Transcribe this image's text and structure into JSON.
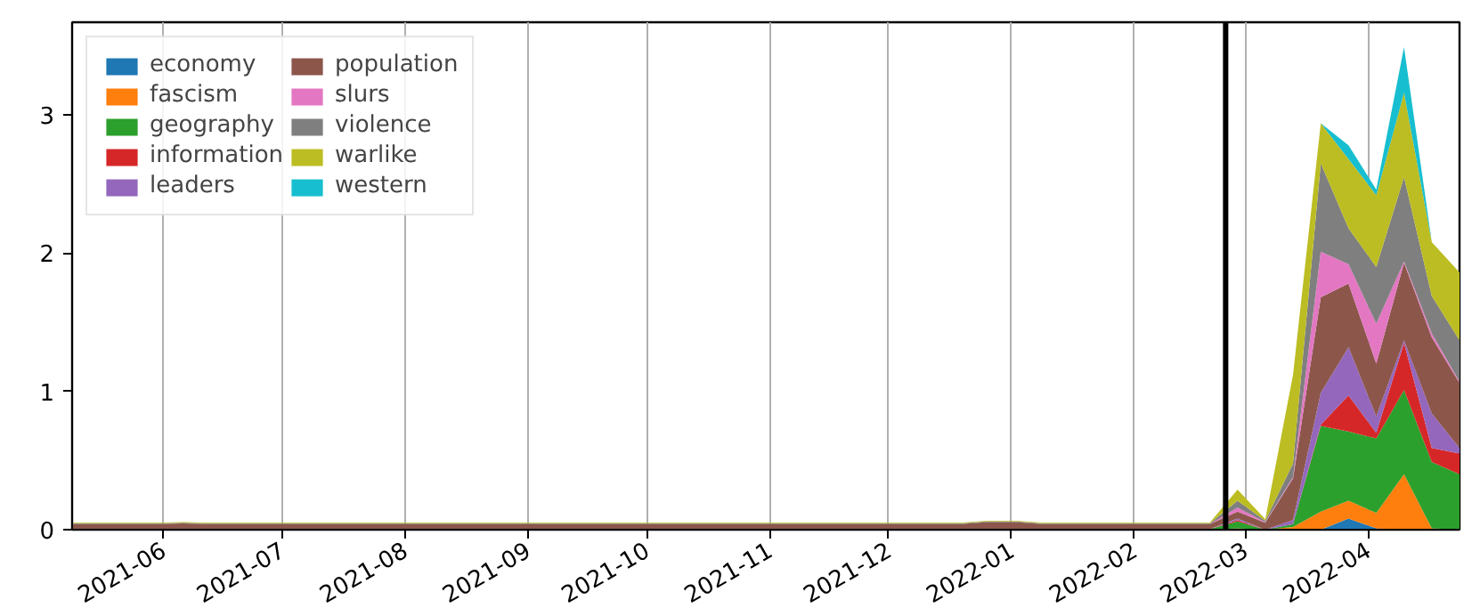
{
  "chart_data": {
    "type": "area",
    "stacked": true,
    "x": [
      "2021-05-09",
      "2021-05-16",
      "2021-05-23",
      "2021-05-30",
      "2021-06-06",
      "2021-06-13",
      "2021-06-20",
      "2021-06-27",
      "2021-07-04",
      "2021-07-11",
      "2021-07-18",
      "2021-07-25",
      "2021-08-01",
      "2021-08-08",
      "2021-08-15",
      "2021-08-22",
      "2021-08-29",
      "2021-09-05",
      "2021-09-12",
      "2021-09-19",
      "2021-09-26",
      "2021-10-03",
      "2021-10-10",
      "2021-10-17",
      "2021-10-24",
      "2021-10-31",
      "2021-11-07",
      "2021-11-14",
      "2021-11-21",
      "2021-11-28",
      "2021-12-05",
      "2021-12-12",
      "2021-12-19",
      "2021-12-26",
      "2022-01-02",
      "2022-01-09",
      "2022-01-16",
      "2022-01-23",
      "2022-01-30",
      "2022-02-06",
      "2022-02-13",
      "2022-02-20",
      "2022-02-27",
      "2022-03-06",
      "2022-03-13",
      "2022-03-20",
      "2022-03-27",
      "2022-04-03",
      "2022-04-10",
      "2022-04-17",
      "2022-04-24"
    ],
    "series": [
      {
        "name": "economy",
        "color": "#1f77b4",
        "values": [
          0,
          0,
          0,
          0,
          0,
          0,
          0,
          0,
          0,
          0,
          0,
          0,
          0,
          0,
          0,
          0,
          0,
          0,
          0,
          0,
          0,
          0,
          0,
          0,
          0,
          0,
          0,
          0,
          0,
          0,
          0,
          0,
          0,
          0,
          0,
          0,
          0,
          0,
          0,
          0,
          0,
          0,
          0,
          0,
          0,
          0,
          0.08,
          0.01,
          0,
          0,
          0
        ]
      },
      {
        "name": "fascism",
        "color": "#ff7f0e",
        "values": [
          0,
          0,
          0,
          0,
          0,
          0,
          0,
          0,
          0,
          0,
          0,
          0,
          0,
          0,
          0,
          0,
          0,
          0,
          0,
          0,
          0,
          0,
          0,
          0,
          0,
          0,
          0,
          0,
          0,
          0,
          0,
          0,
          0,
          0,
          0,
          0,
          0,
          0,
          0,
          0,
          0,
          0,
          0.01,
          0,
          0.02,
          0.13,
          0.13,
          0.11,
          0.4,
          0.01,
          0
        ]
      },
      {
        "name": "geography",
        "color": "#2ca02c",
        "values": [
          0.005,
          0.005,
          0.005,
          0.005,
          0.005,
          0.005,
          0.005,
          0.005,
          0.005,
          0.005,
          0.005,
          0.005,
          0.005,
          0.005,
          0.005,
          0.005,
          0.005,
          0.005,
          0.005,
          0.005,
          0.005,
          0.005,
          0.005,
          0.005,
          0.005,
          0.005,
          0.005,
          0.005,
          0.005,
          0.005,
          0.005,
          0.005,
          0.005,
          0.005,
          0.005,
          0.005,
          0.005,
          0.005,
          0.005,
          0.005,
          0.005,
          0.005,
          0.05,
          0,
          0.02,
          0.62,
          0.5,
          0.54,
          0.61,
          0.48,
          0.4
        ]
      },
      {
        "name": "information",
        "color": "#d62728",
        "values": [
          0,
          0,
          0,
          0,
          0,
          0,
          0,
          0,
          0,
          0,
          0,
          0,
          0,
          0,
          0,
          0,
          0,
          0,
          0,
          0,
          0,
          0,
          0,
          0,
          0,
          0,
          0,
          0,
          0,
          0,
          0,
          0,
          0,
          0,
          0,
          0,
          0,
          0,
          0,
          0,
          0,
          0,
          0.01,
          0,
          0,
          0.01,
          0.26,
          0.04,
          0.34,
          0.1,
          0.15
        ]
      },
      {
        "name": "leaders",
        "color": "#9467bd",
        "values": [
          0,
          0,
          0,
          0,
          0,
          0,
          0,
          0,
          0,
          0,
          0,
          0,
          0,
          0,
          0,
          0,
          0,
          0,
          0,
          0,
          0,
          0,
          0,
          0,
          0,
          0,
          0,
          0,
          0,
          0,
          0,
          0,
          0,
          0,
          0,
          0,
          0,
          0,
          0,
          0,
          0,
          0,
          0.01,
          0,
          0.03,
          0.23,
          0.35,
          0.12,
          0.02,
          0.25,
          0.04
        ]
      },
      {
        "name": "population",
        "color": "#8c564b",
        "values": [
          0.035,
          0.035,
          0.035,
          0.035,
          0.04,
          0.035,
          0.035,
          0.035,
          0.035,
          0.035,
          0.035,
          0.035,
          0.035,
          0.035,
          0.035,
          0.035,
          0.035,
          0.035,
          0.035,
          0.035,
          0.035,
          0.035,
          0.035,
          0.035,
          0.035,
          0.035,
          0.035,
          0.035,
          0.035,
          0.035,
          0.035,
          0.035,
          0.035,
          0.05,
          0.05,
          0.035,
          0.035,
          0.035,
          0.035,
          0.035,
          0.035,
          0.035,
          0.05,
          0.05,
          0.3,
          0.69,
          0.46,
          0.38,
          0.56,
          0.55,
          0.47
        ]
      },
      {
        "name": "slurs",
        "color": "#e377c2",
        "values": [
          0,
          0,
          0,
          0,
          0,
          0,
          0,
          0,
          0,
          0,
          0,
          0,
          0,
          0,
          0,
          0,
          0,
          0,
          0,
          0,
          0,
          0,
          0,
          0,
          0,
          0,
          0,
          0,
          0,
          0,
          0,
          0,
          0,
          0,
          0,
          0,
          0,
          0,
          0,
          0,
          0,
          0,
          0.03,
          0.005,
          0.01,
          0.33,
          0.14,
          0.29,
          0.01,
          0.03,
          0.01
        ]
      },
      {
        "name": "violence",
        "color": "#7f7f7f",
        "values": [
          0.005,
          0.005,
          0.005,
          0.005,
          0.005,
          0.005,
          0.005,
          0.005,
          0.005,
          0.005,
          0.005,
          0.005,
          0.005,
          0.005,
          0.005,
          0.005,
          0.005,
          0.005,
          0.005,
          0.005,
          0.005,
          0.005,
          0.005,
          0.005,
          0.005,
          0.005,
          0.005,
          0.005,
          0.005,
          0.005,
          0.005,
          0.005,
          0.005,
          0.005,
          0.005,
          0.005,
          0.005,
          0.005,
          0.005,
          0.005,
          0.005,
          0.005,
          0.05,
          0.01,
          0.1,
          0.64,
          0.26,
          0.41,
          0.61,
          0.27,
          0.3
        ]
      },
      {
        "name": "warlike",
        "color": "#bcbd22",
        "values": [
          0.005,
          0.005,
          0.005,
          0.005,
          0.005,
          0.005,
          0.005,
          0.005,
          0.005,
          0.005,
          0.005,
          0.005,
          0.005,
          0.005,
          0.005,
          0.005,
          0.005,
          0.005,
          0.005,
          0.005,
          0.005,
          0.005,
          0.005,
          0.005,
          0.005,
          0.005,
          0.005,
          0.005,
          0.005,
          0.005,
          0.005,
          0.005,
          0.005,
          0.005,
          0.005,
          0.005,
          0.005,
          0.005,
          0.005,
          0.005,
          0.005,
          0.005,
          0.08,
          0.01,
          0.64,
          0.29,
          0.5,
          0.52,
          0.61,
          0.39,
          0.49
        ]
      },
      {
        "name": "western",
        "color": "#17becf",
        "values": [
          0,
          0,
          0,
          0,
          0,
          0,
          0,
          0,
          0,
          0,
          0,
          0,
          0,
          0,
          0,
          0,
          0,
          0,
          0,
          0,
          0,
          0,
          0,
          0,
          0,
          0,
          0,
          0,
          0,
          0,
          0,
          0,
          0,
          0,
          0,
          0,
          0,
          0,
          0,
          0,
          0,
          0,
          0,
          0,
          0,
          0,
          0.1,
          0.04,
          0.33,
          0,
          0
        ]
      }
    ],
    "xlim": [
      "2021-05-09",
      "2022-04-24"
    ],
    "ylim": [
      0,
      3.67
    ],
    "xticks": [
      {
        "value": "2021-06-01",
        "label": "2021-06"
      },
      {
        "value": "2021-07-01",
        "label": "2021-07"
      },
      {
        "value": "2021-08-01",
        "label": "2021-08"
      },
      {
        "value": "2021-09-01",
        "label": "2021-09"
      },
      {
        "value": "2021-10-01",
        "label": "2021-10"
      },
      {
        "value": "2021-11-01",
        "label": "2021-11"
      },
      {
        "value": "2021-12-01",
        "label": "2021-12"
      },
      {
        "value": "2022-01-01",
        "label": "2022-01"
      },
      {
        "value": "2022-02-01",
        "label": "2022-02"
      },
      {
        "value": "2022-03-01",
        "label": "2022-03"
      },
      {
        "value": "2022-04-01",
        "label": "2022-04"
      }
    ],
    "yticks": [
      0,
      1,
      2,
      3
    ],
    "grid": "x",
    "legend": "top left",
    "ref_lines": [
      {
        "axis": "x",
        "value": "2022-02-24",
        "color": "#000000"
      }
    ]
  }
}
